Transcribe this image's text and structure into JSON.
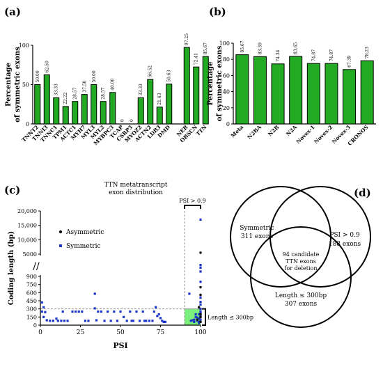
{
  "panel_labels": {
    "a": "(a)",
    "b": "(b)",
    "c": "(c)",
    "d": "(d)"
  },
  "colors": {
    "bar": "#22aa22",
    "symmetric": "#1f37c8",
    "asymmetric": "#111111",
    "highlight": "#7cf07c"
  },
  "chart_data": [
    {
      "id": "a",
      "type": "bar",
      "ylabel": "Percentage\nof symmetric exons",
      "ylim": [
        0,
        100
      ],
      "yticks": [
        0,
        50,
        100
      ],
      "categories": [
        "TNNT2",
        "TNNI3",
        "TNNC1",
        "TPM1",
        "ACTC1",
        "MYH7",
        "MYL3",
        "MYL2",
        "MYBPC3",
        "TCAP",
        "CSRP3",
        "MYOZ2",
        "ACTN2",
        "LDB3",
        "DMD",
        "NEB",
        "OBSCN",
        "TTN"
      ],
      "values": [
        50.0,
        62.5,
        33.33,
        22.22,
        28.57,
        37.5,
        50.0,
        28.57,
        40.0,
        0,
        0,
        33.33,
        56.52,
        21.43,
        50.63,
        97.25,
        72.41,
        85.67
      ],
      "value_labels": [
        "50.00",
        "62.50",
        "33.33",
        "22.22",
        "28.57",
        "37.50",
        "50.00",
        "28.57",
        "40.00",
        "0",
        "0",
        "33.33",
        "56.52",
        "21.43",
        "50.63",
        "97.25",
        "72.41",
        "85.67"
      ]
    },
    {
      "id": "b",
      "type": "bar",
      "ylabel": "Percentage\nof symmetric exons",
      "ylim": [
        0,
        100
      ],
      "yticks": [
        0,
        20,
        40,
        60,
        80,
        100
      ],
      "categories": [
        "Meta",
        "N2BA",
        "N2B",
        "N2A",
        "Novex-1",
        "Novex-2",
        "Novex-3",
        "CRONOS"
      ],
      "values": [
        85.67,
        83.39,
        74.34,
        83.65,
        74.87,
        74.87,
        67.39,
        78.23
      ],
      "value_labels": [
        "85.67",
        "83.39",
        "74.34",
        "83.65",
        "74.87",
        "74.87",
        "67.39",
        "78.23"
      ]
    },
    {
      "id": "c",
      "type": "scatter",
      "title": "TTN metatranscript\nexon distribution",
      "xlabel": "PSI",
      "ylabel": "Coding length (bp)",
      "xlim": [
        0,
        100
      ],
      "xticks": [
        0,
        25,
        50,
        75,
        100
      ],
      "yticks_lower": [
        0,
        150,
        300,
        450,
        600,
        750,
        900
      ],
      "yticks_upper": [
        5000,
        10000,
        15000,
        20000
      ],
      "yticks_upper_labels": [
        "5000",
        "10,000",
        "15,000",
        "20,000"
      ],
      "legend": [
        "Asymmetric",
        "Symmetric"
      ],
      "annotations": {
        "psi": "PSI > 0.9",
        "length": "Length ≤ 300bp"
      },
      "symmetric_points": [
        [
          1,
          420
        ],
        [
          2,
          330
        ],
        [
          1,
          250
        ],
        [
          3,
          240
        ],
        [
          2,
          150
        ],
        [
          4,
          90
        ],
        [
          6,
          80
        ],
        [
          8,
          80
        ],
        [
          10,
          120
        ],
        [
          11,
          80
        ],
        [
          13,
          80
        ],
        [
          14,
          250
        ],
        [
          15,
          80
        ],
        [
          17,
          80
        ],
        [
          20,
          250
        ],
        [
          22,
          250
        ],
        [
          24,
          250
        ],
        [
          26,
          250
        ],
        [
          28,
          80
        ],
        [
          30,
          80
        ],
        [
          34,
          310
        ],
        [
          35,
          90
        ],
        [
          36,
          250
        ],
        [
          38,
          250
        ],
        [
          40,
          80
        ],
        [
          42,
          250
        ],
        [
          44,
          80
        ],
        [
          46,
          250
        ],
        [
          48,
          80
        ],
        [
          50,
          250
        ],
        [
          52,
          150
        ],
        [
          54,
          80
        ],
        [
          56,
          250
        ],
        [
          57,
          80
        ],
        [
          58,
          80
        ],
        [
          60,
          250
        ],
        [
          62,
          80
        ],
        [
          64,
          250
        ],
        [
          65,
          80
        ],
        [
          66,
          80
        ],
        [
          68,
          80
        ],
        [
          70,
          80
        ],
        [
          71,
          250
        ],
        [
          72,
          330
        ],
        [
          73,
          170
        ],
        [
          74,
          200
        ],
        [
          75,
          130
        ],
        [
          76,
          80
        ],
        [
          77,
          60
        ],
        [
          78,
          60
        ],
        [
          34,
          580
        ],
        [
          93,
          580
        ],
        [
          94,
          80
        ],
        [
          95,
          90
        ],
        [
          96,
          60
        ],
        [
          97,
          150
        ],
        [
          98,
          140
        ],
        [
          99,
          120
        ],
        [
          99,
          200
        ],
        [
          100,
          250
        ],
        [
          100,
          300
        ],
        [
          100,
          380
        ],
        [
          100,
          430
        ],
        [
          100,
          510
        ],
        [
          100,
          800
        ],
        [
          100,
          1800
        ],
        [
          100,
          2500
        ],
        [
          100,
          3000
        ],
        [
          100,
          17000
        ],
        [
          99,
          60
        ],
        [
          98,
          80
        ],
        [
          100,
          160
        ],
        [
          100,
          220
        ],
        [
          99,
          40
        ],
        [
          97,
          200
        ],
        [
          96,
          100
        ],
        [
          100,
          100
        ]
      ],
      "asymmetric_points": [
        [
          100,
          700
        ],
        [
          100,
          5500
        ],
        [
          100,
          560
        ],
        [
          99,
          330
        ],
        [
          100,
          200
        ],
        [
          100,
          150
        ],
        [
          98,
          100
        ],
        [
          100,
          60
        ]
      ]
    }
  ],
  "venn": {
    "symmetric": [
      "Symmetric",
      "311 exons"
    ],
    "psi": [
      "PSI > 0.9",
      "188 exons"
    ],
    "length": [
      "Length ≤ 300bp",
      "307 exons"
    ],
    "center": [
      "94 candidate",
      "TTN exons",
      "for deletion"
    ]
  }
}
